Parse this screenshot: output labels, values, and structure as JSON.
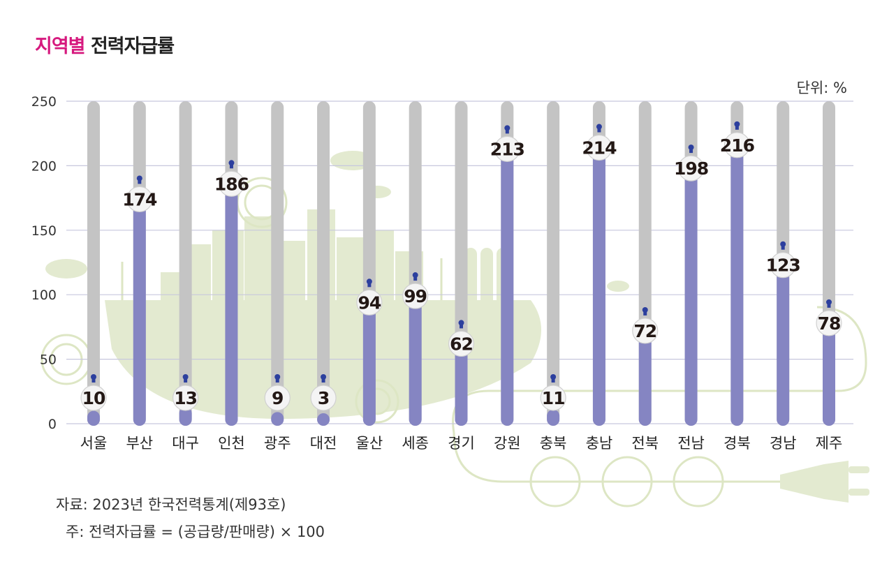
{
  "title": {
    "highlight": "지역별",
    "rest": "전력자급률"
  },
  "unit_label": "단위: %",
  "source": "자료: 2023년 한국전력통계(제93호)",
  "note": "주: 전력자급률 = (공급량/판매량) × 100",
  "colors": {
    "accent": "#d6197e",
    "bar_fill": "#8585c2",
    "bar_track": "#c4c4c4",
    "background_art": "#dde6c4",
    "gridline": "#c7c7dd"
  },
  "chart_data": {
    "type": "bar",
    "title": "지역별 전력자급률",
    "xlabel": "",
    "ylabel": "단위: %",
    "ylim": [
      0,
      250
    ],
    "yticks": [
      "0",
      "50",
      "100",
      "150",
      "200",
      "250"
    ],
    "categories": [
      "서울",
      "부산",
      "대구",
      "인천",
      "광주",
      "대전",
      "울산",
      "세종",
      "경기",
      "강원",
      "충북",
      "충남",
      "전북",
      "전남",
      "경북",
      "경남",
      "제주"
    ],
    "values": [
      10,
      174,
      13,
      186,
      9,
      3,
      94,
      99,
      62,
      213,
      11,
      214,
      72,
      198,
      216,
      123,
      78
    ],
    "grid": true,
    "legend": "none"
  }
}
